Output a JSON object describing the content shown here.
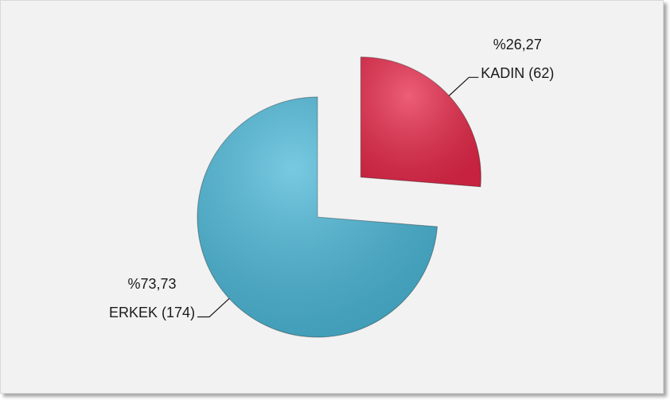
{
  "chart_data": {
    "type": "pie",
    "categories": [
      "KADIN (62)",
      "ERKEK (174)"
    ],
    "values": [
      26.27,
      73.73
    ],
    "value_labels": [
      "%26,27",
      "%73,73"
    ],
    "colors": [
      "#e8294a",
      "#4bb8d8"
    ],
    "exploded": [
      true,
      false
    ]
  }
}
